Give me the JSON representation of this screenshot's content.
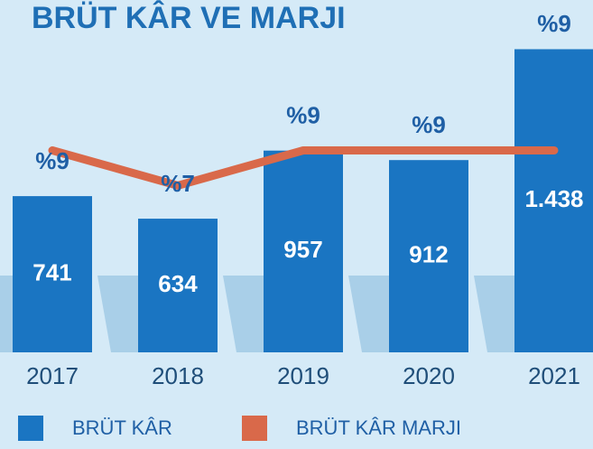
{
  "chart_data": {
    "type": "bar",
    "title": "BRÜT KÂR VE MARJI",
    "categories": [
      "2017",
      "2018",
      "2019",
      "2020",
      "2021"
    ],
    "series": [
      {
        "name": "BRÜT KÂR",
        "color": "#1a75c2",
        "values": [
          741,
          634,
          957,
          912,
          1438
        ],
        "value_labels": [
          "741",
          "634",
          "957",
          "912",
          "1.438"
        ]
      },
      {
        "name": "BRÜT KÂR MARJI",
        "type": "line",
        "axis": "y2",
        "color": "#d9694a",
        "values": [
          9,
          7,
          9,
          9,
          9
        ],
        "value_labels": [
          "%9",
          "%7",
          "%9",
          "%9",
          "%9"
        ]
      }
    ],
    "ylim": [
      0,
      1500
    ],
    "y2lim": [
      -3,
      15.5
    ],
    "legend": "bottom"
  }
}
